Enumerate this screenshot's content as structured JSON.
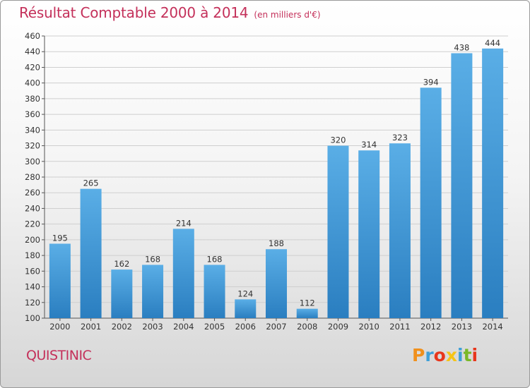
{
  "chart_data": {
    "type": "bar",
    "title": "Résultat Comptable 2000 à 2014",
    "subtitle": "(en milliers d'€)",
    "categories": [
      "2000",
      "2001",
      "2002",
      "2003",
      "2004",
      "2005",
      "2006",
      "2007",
      "2008",
      "2009",
      "2010",
      "2011",
      "2012",
      "2013",
      "2014"
    ],
    "values": [
      195,
      265,
      162,
      168,
      214,
      168,
      124,
      188,
      112,
      320,
      314,
      323,
      394,
      438,
      444
    ],
    "ylim": [
      100,
      460
    ],
    "ytick_step": 20,
    "yticks": [
      "100",
      "120",
      "140",
      "160",
      "180",
      "200",
      "220",
      "240",
      "260",
      "280",
      "300",
      "320",
      "340",
      "360",
      "380",
      "400",
      "420",
      "440",
      "460"
    ],
    "grid": true,
    "bar_color_top": "#5aaee6",
    "bar_color_bottom": "#2a7ec0"
  },
  "footer": {
    "commune": "QUISTINIC",
    "logo": "Proxiti",
    "logo_colors": [
      "#f0901c",
      "#3fa0d8",
      "#e8361c",
      "#f5c418",
      "#3fa0d8",
      "#7ab828",
      "#e8361c"
    ]
  }
}
